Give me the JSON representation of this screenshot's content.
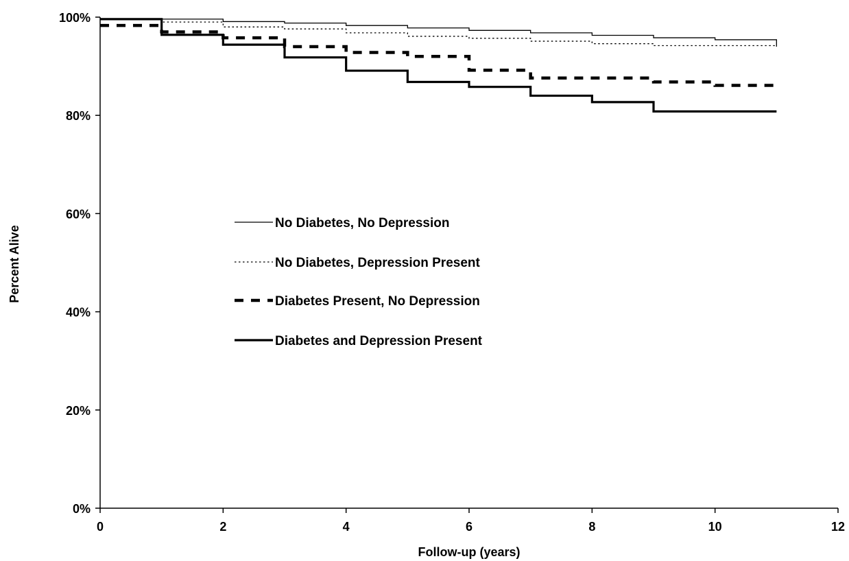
{
  "chart_data": {
    "type": "line",
    "title": "",
    "xlabel": "Follow-up (years)",
    "ylabel": "Percent Alive",
    "xlim": [
      0,
      12
    ],
    "ylim": [
      0,
      100
    ],
    "x_ticks": [
      0,
      2,
      4,
      6,
      8,
      10,
      12
    ],
    "x_tick_labels": [
      "0",
      "2",
      "4",
      "6",
      "8",
      "10",
      "12"
    ],
    "y_ticks": [
      0,
      20,
      40,
      60,
      80,
      100
    ],
    "y_tick_labels": [
      "0%",
      "20%",
      "40%",
      "60%",
      "80%",
      "100%"
    ],
    "grid": false,
    "step": true,
    "legend_position": "center-left",
    "series": [
      {
        "name": "No Diabetes, No Depression",
        "style": "thin-solid",
        "color": "#000000",
        "x": [
          0,
          2,
          3,
          4,
          5,
          6,
          7,
          8,
          9,
          10,
          11
        ],
        "y": [
          99.6,
          99.1,
          98.8,
          98.3,
          97.8,
          97.3,
          96.8,
          96.3,
          95.8,
          95.4,
          94.0
        ]
      },
      {
        "name": "No Diabetes, Depression Present",
        "style": "thin-dotted",
        "color": "#000000",
        "x": [
          0,
          1,
          2,
          3,
          4,
          5,
          6,
          7,
          8,
          9,
          11
        ],
        "y": [
          99.6,
          99.0,
          98.0,
          97.6,
          96.8,
          96.1,
          95.7,
          95.1,
          94.6,
          94.2,
          94.0
        ]
      },
      {
        "name": "Diabetes Present, No Depression",
        "style": "thick-dashed",
        "color": "#000000",
        "x": [
          0,
          1,
          2,
          3,
          4,
          5,
          6,
          7,
          9,
          10,
          11
        ],
        "y": [
          98.3,
          97.0,
          95.8,
          94.0,
          92.8,
          92.0,
          89.2,
          87.6,
          86.8,
          86.1,
          86.0
        ]
      },
      {
        "name": "Diabetes and Depression Present",
        "style": "thick-solid",
        "color": "#000000",
        "x": [
          0,
          1,
          2,
          3,
          4,
          5,
          6,
          7,
          8,
          9,
          11
        ],
        "y": [
          99.6,
          96.4,
          94.4,
          91.8,
          89.1,
          86.8,
          85.8,
          84.0,
          82.7,
          80.8,
          80.8
        ]
      }
    ]
  }
}
